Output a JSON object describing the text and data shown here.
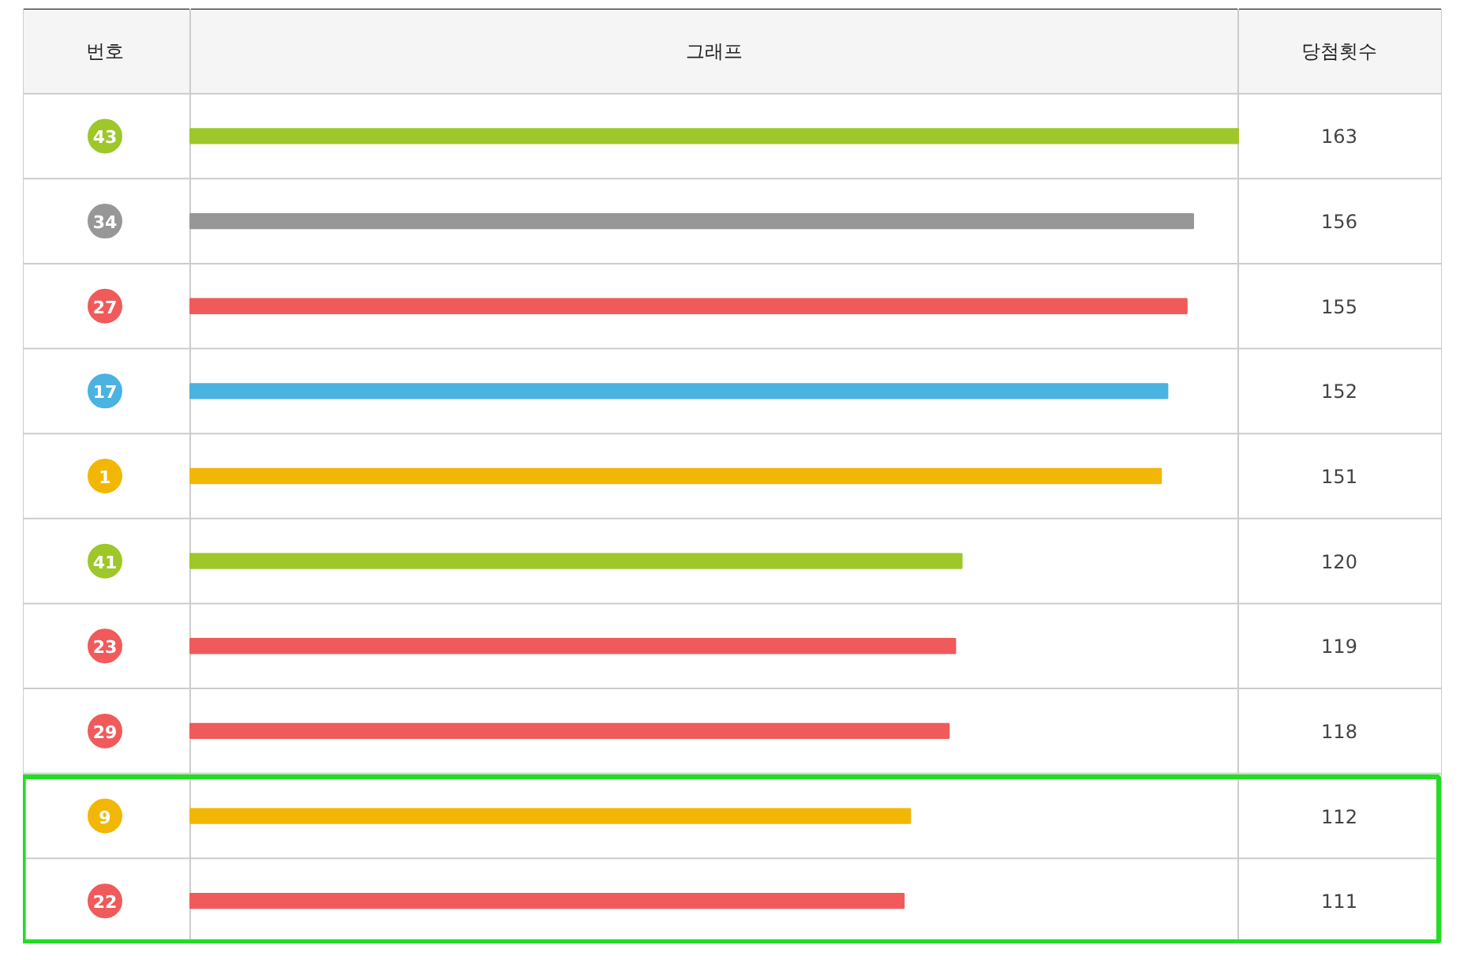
{
  "chart_data": {
    "type": "bar",
    "orientation": "horizontal",
    "ylabel": "번호",
    "xlabel": "그래프",
    "annotations": [
      "당첨횟수"
    ],
    "categories": [
      "43",
      "34",
      "27",
      "17",
      "1",
      "41",
      "23",
      "29",
      "9",
      "22"
    ],
    "values": [
      163,
      156,
      155,
      152,
      151,
      120,
      119,
      118,
      112,
      111
    ],
    "colors": [
      "#9ec72a",
      "#979797",
      "#f05a5a",
      "#4ab3e2",
      "#f2b705",
      "#9ec72a",
      "#f05a5a",
      "#f05a5a",
      "#f2b705",
      "#f05a5a"
    ],
    "xlim": [
      0,
      163
    ],
    "data_labels": true
  }
}
